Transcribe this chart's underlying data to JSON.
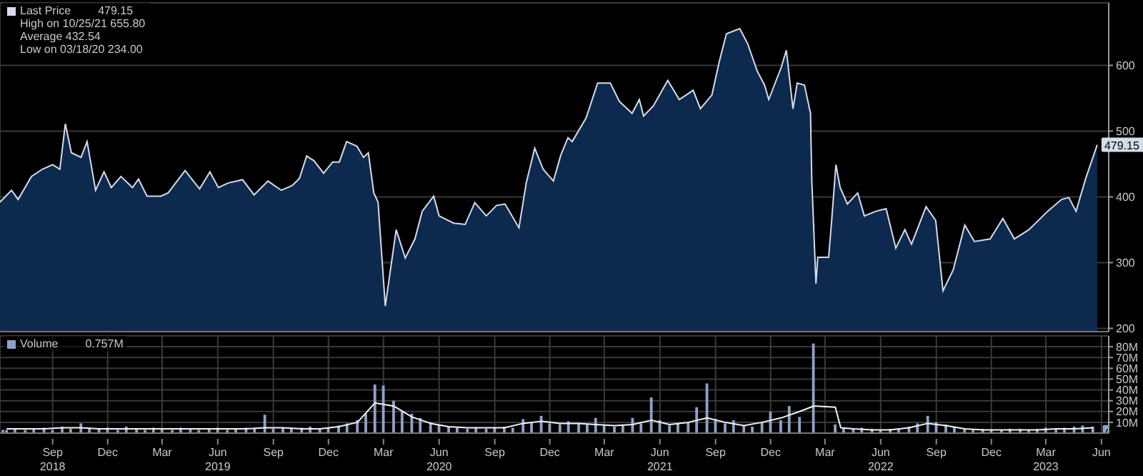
{
  "chart_data": [
    {
      "type": "area",
      "legend": "top left",
      "grid": true,
      "tick_labels": "y",
      "xlim": [
        "2018-06-20",
        "2023-06-27"
      ],
      "ylim": [
        195,
        695
      ],
      "yticks": [
        200,
        300,
        400,
        500,
        600
      ],
      "xticks": [
        {
          "value": "2018-09-15",
          "label": null
        },
        {
          "value": "2018-12-15",
          "label": null
        },
        {
          "value": "2019-03-15",
          "label": null
        },
        {
          "value": "2019-06-15",
          "label": null
        },
        {
          "value": "2019-09-15",
          "label": null
        },
        {
          "value": "2019-12-15",
          "label": null
        },
        {
          "value": "2020-03-15",
          "label": null
        },
        {
          "value": "2020-06-15",
          "label": null
        },
        {
          "value": "2020-09-15",
          "label": null
        },
        {
          "value": "2020-12-15",
          "label": null
        },
        {
          "value": "2021-03-15",
          "label": null
        },
        {
          "value": "2021-06-15",
          "label": null
        },
        {
          "value": "2021-09-15",
          "label": null
        },
        {
          "value": "2021-12-15",
          "label": null
        },
        {
          "value": "2022-03-15",
          "label": null
        },
        {
          "value": "2022-06-15",
          "label": null
        },
        {
          "value": "2022-09-15",
          "label": null
        },
        {
          "value": "2022-12-15",
          "label": null
        },
        {
          "value": "2023-03-15",
          "label": null
        },
        {
          "value": "2023-06-15",
          "label": null
        }
      ],
      "annotations": [
        "High on 10/25/21 655.80",
        "Average 432.54",
        "Low on 03/18/20 234.00"
      ],
      "series": [
        {
          "name": "Last Price",
          "color": "#d6dcea",
          "x": [
            "2018-06-20",
            "2018-07-09",
            "2018-07-20",
            "2018-08-11",
            "2018-08-29",
            "2018-09-15",
            "2018-09-27",
            "2018-10-06",
            "2018-10-16",
            "2018-11-01",
            "2018-11-11",
            "2018-11-25",
            "2018-12-09",
            "2018-12-21",
            "2019-01-06",
            "2019-01-25",
            "2019-02-04",
            "2019-02-18",
            "2019-03-13",
            "2019-03-25",
            "2019-04-22",
            "2019-05-16",
            "2019-06-02",
            "2019-06-16",
            "2019-07-02",
            "2019-07-26",
            "2019-08-14",
            "2019-09-06",
            "2019-09-28",
            "2019-10-16",
            "2019-10-28",
            "2019-11-09",
            "2019-11-21",
            "2019-12-07",
            "2019-12-22",
            "2020-01-02",
            "2020-01-14",
            "2020-01-31",
            "2020-02-11",
            "2020-02-19",
            "2020-02-28",
            "2020-03-06",
            "2020-03-18",
            "2020-04-05",
            "2020-04-20",
            "2020-05-06",
            "2020-05-18",
            "2020-06-06",
            "2020-06-15",
            "2020-07-09",
            "2020-07-28",
            "2020-08-13",
            "2020-09-01",
            "2020-09-18",
            "2020-10-02",
            "2020-10-25",
            "2020-11-06",
            "2020-11-20",
            "2020-12-04",
            "2020-12-21",
            "2021-01-02",
            "2021-01-14",
            "2021-01-21",
            "2021-02-13",
            "2021-03-04",
            "2021-03-25",
            "2021-04-09",
            "2021-04-30",
            "2021-05-12",
            "2021-05-19",
            "2021-06-04",
            "2021-06-28",
            "2021-07-17",
            "2021-08-09",
            "2021-08-21",
            "2021-09-09",
            "2021-09-21",
            "2021-10-03",
            "2021-10-25",
            "2021-11-07",
            "2021-11-23",
            "2021-12-05",
            "2021-12-12",
            "2022-01-02",
            "2022-01-10",
            "2022-01-21",
            "2022-01-28",
            "2022-02-09",
            "2022-02-19",
            "2022-02-21",
            "2022-02-28",
            "2022-03-03",
            "2022-03-21",
            "2022-03-26",
            "2022-04-02",
            "2022-04-09",
            "2022-04-21",
            "2022-05-08",
            "2022-05-19",
            "2022-06-07",
            "2022-06-24",
            "2022-07-10",
            "2022-07-25",
            "2022-08-05",
            "2022-08-29",
            "2022-09-14",
            "2022-09-26",
            "2022-10-13",
            "2022-11-01",
            "2022-11-17",
            "2022-12-13",
            "2023-01-03",
            "2023-01-22",
            "2023-02-15",
            "2023-03-18",
            "2023-04-10",
            "2023-04-22",
            "2023-05-04",
            "2023-05-20",
            "2023-06-08"
          ],
          "values": [
            392,
            410,
            396,
            431,
            442,
            449,
            442,
            511,
            467,
            460,
            484,
            410,
            438,
            414,
            431,
            414,
            427,
            401,
            401,
            406,
            440,
            412,
            438,
            414,
            421,
            426,
            403,
            424,
            410,
            417,
            428,
            462,
            455,
            436,
            453,
            453,
            484,
            477,
            460,
            467,
            406,
            392,
            234,
            350,
            307,
            336,
            378,
            401,
            371,
            360,
            358,
            391,
            371,
            387,
            389,
            353,
            421,
            474,
            442,
            424,
            463,
            490,
            484,
            520,
            573,
            573,
            545,
            527,
            548,
            523,
            538,
            577,
            548,
            562,
            534,
            555,
            605,
            648,
            655.8,
            633,
            591,
            570,
            548,
            598,
            623,
            534,
            573,
            570,
            527,
            428,
            268,
            308,
            308,
            364,
            449,
            414,
            389,
            406,
            371,
            378,
            382,
            322,
            350,
            328,
            385,
            364,
            257,
            289,
            357,
            332,
            336,
            367,
            336,
            350,
            378,
            396,
            399,
            378,
            428,
            479.15
          ],
          "value_labels": [
            null,
            null,
            null,
            null,
            null,
            null,
            null,
            null,
            null,
            null,
            null,
            null,
            null,
            null,
            null,
            null,
            null,
            null,
            null,
            null,
            null,
            null,
            null,
            null,
            null,
            null,
            null,
            null,
            null,
            null,
            null,
            null,
            null,
            null,
            null,
            null,
            null,
            null,
            null,
            null,
            null,
            null,
            null,
            null,
            null,
            null,
            null,
            null,
            null,
            null,
            null,
            null,
            null,
            null,
            null,
            null,
            null,
            null,
            null,
            null,
            null,
            null,
            null,
            null,
            null,
            null,
            null,
            null,
            null,
            null,
            null,
            null,
            null,
            null,
            null,
            null,
            null,
            null,
            null,
            null,
            null,
            null,
            null,
            null,
            null,
            null,
            null,
            null,
            null,
            null,
            null,
            null,
            null,
            null,
            null,
            null,
            null,
            null,
            null,
            null,
            null,
            null,
            null,
            null,
            null,
            null,
            null,
            null,
            null,
            null,
            null,
            null,
            null,
            null,
            null,
            null,
            null,
            null,
            null,
            "479.15"
          ]
        }
      ]
    },
    {
      "type": "bar",
      "legend": "top left",
      "grid": true,
      "xlim": [
        "2018-06-20",
        "2023-06-27"
      ],
      "ylim": [
        0,
        90
      ],
      "yticks": [
        {
          "value": 10,
          "label": "10M"
        },
        {
          "value": 20,
          "label": "20M"
        },
        {
          "value": 30,
          "label": "30M"
        },
        {
          "value": 40,
          "label": "40M"
        },
        {
          "value": 50,
          "label": "50M"
        },
        {
          "value": 60,
          "label": "60M"
        },
        {
          "value": 70,
          "label": "70M"
        },
        {
          "value": 80,
          "label": "80M"
        }
      ],
      "xticks": [
        {
          "value": "2018-09-15",
          "label": "Sep\n2018"
        },
        {
          "value": "2018-12-15",
          "label": "Dec"
        },
        {
          "value": "2019-03-15",
          "label": "Mar"
        },
        {
          "value": "2019-06-15",
          "label": "Jun\n2019"
        },
        {
          "value": "2019-09-15",
          "label": "Sep"
        },
        {
          "value": "2019-12-15",
          "label": "Dec"
        },
        {
          "value": "2020-03-15",
          "label": "Mar"
        },
        {
          "value": "2020-06-15",
          "label": "Jun\n2020"
        },
        {
          "value": "2020-09-15",
          "label": "Sep"
        },
        {
          "value": "2020-12-15",
          "label": "Dec"
        },
        {
          "value": "2021-03-15",
          "label": "Mar"
        },
        {
          "value": "2021-06-15",
          "label": "Jun\n2021"
        },
        {
          "value": "2021-09-15",
          "label": "Sep"
        },
        {
          "value": "2021-12-15",
          "label": "Dec"
        },
        {
          "value": "2022-03-15",
          "label": "Mar"
        },
        {
          "value": "2022-06-15",
          "label": "Jun\n2022"
        },
        {
          "value": "2022-09-15",
          "label": "Sep"
        },
        {
          "value": "2022-12-15",
          "label": "Dec"
        },
        {
          "value": "2023-03-15",
          "label": "Mar\n2023"
        },
        {
          "value": "2023-06-15",
          "label": "Jun"
        }
      ],
      "series": [
        {
          "name": "Volume",
          "color": "#8fa3c8",
          "x": [
            "2018-06-25",
            "2018-07-01",
            "2018-07-15",
            "2018-08-01",
            "2018-08-15",
            "2018-09-01",
            "2018-09-15",
            "2018-10-01",
            "2018-10-15",
            "2018-11-01",
            "2018-11-15",
            "2018-12-01",
            "2018-12-15",
            "2019-01-01",
            "2019-01-15",
            "2019-02-01",
            "2019-02-15",
            "2019-03-01",
            "2019-03-15",
            "2019-04-01",
            "2019-04-15",
            "2019-05-01",
            "2019-05-15",
            "2019-06-01",
            "2019-06-15",
            "2019-07-01",
            "2019-07-15",
            "2019-08-01",
            "2019-08-15",
            "2019-09-01",
            "2019-09-15",
            "2019-10-01",
            "2019-10-15",
            "2019-11-01",
            "2019-11-15",
            "2019-12-01",
            "2019-12-15",
            "2020-01-01",
            "2020-01-15",
            "2020-02-01",
            "2020-02-15",
            "2020-03-01",
            "2020-03-15",
            "2020-04-01",
            "2020-04-15",
            "2020-05-01",
            "2020-05-15",
            "2020-06-01",
            "2020-06-15",
            "2020-07-01",
            "2020-07-15",
            "2020-08-01",
            "2020-08-15",
            "2020-09-01",
            "2020-09-15",
            "2020-10-01",
            "2020-10-15",
            "2020-11-01",
            "2020-11-15",
            "2020-12-01",
            "2020-12-15",
            "2021-01-01",
            "2021-01-15",
            "2021-02-01",
            "2021-02-15",
            "2021-03-01",
            "2021-03-15",
            "2021-04-01",
            "2021-04-15",
            "2021-05-01",
            "2021-05-15",
            "2021-06-01",
            "2021-06-15",
            "2021-07-01",
            "2021-07-15",
            "2021-08-01",
            "2021-08-15",
            "2021-09-01",
            "2021-09-15",
            "2021-10-01",
            "2021-10-15",
            "2021-11-01",
            "2021-11-15",
            "2021-12-01",
            "2021-12-15",
            "2022-01-01",
            "2022-01-15",
            "2022-02-01",
            "2022-02-24",
            "2022-03-01",
            "2022-03-15",
            "2022-04-01",
            "2022-04-15",
            "2022-05-01",
            "2022-05-15",
            "2022-06-01",
            "2022-06-15",
            "2022-07-01",
            "2022-07-15",
            "2022-08-01",
            "2022-08-15",
            "2022-09-01",
            "2022-09-15",
            "2022-10-01",
            "2022-10-15",
            "2022-11-01",
            "2022-11-15",
            "2022-12-01",
            "2022-12-15",
            "2023-01-01",
            "2023-01-15",
            "2023-02-01",
            "2023-02-15",
            "2023-03-01",
            "2023-03-15",
            "2023-04-01",
            "2023-04-15",
            "2023-05-01",
            "2023-05-15",
            "2023-06-01",
            "2023-06-08"
          ],
          "values": [
            3,
            3,
            4,
            3,
            4,
            5,
            3,
            6,
            4,
            9,
            5,
            4,
            5,
            3,
            6,
            4,
            3,
            5,
            4,
            3,
            5,
            4,
            3,
            4,
            5,
            3,
            4,
            5,
            4,
            17,
            4,
            5,
            4,
            5,
            6,
            4,
            5,
            7,
            9,
            12,
            18,
            45,
            44,
            30,
            20,
            18,
            14,
            10,
            8,
            6,
            5,
            4,
            5,
            4,
            5,
            6,
            5,
            13,
            10,
            16,
            9,
            8,
            11,
            9,
            8,
            14,
            7,
            6,
            8,
            14,
            9,
            33,
            12,
            7,
            9,
            10,
            24,
            46,
            13,
            9,
            12,
            7,
            6,
            10,
            20,
            12,
            25,
            15,
            83,
            null,
            null,
            8,
            5,
            4,
            5,
            4,
            3,
            4,
            4,
            6,
            9,
            16,
            10,
            8,
            6,
            4,
            3,
            4,
            3,
            3,
            4,
            4,
            3,
            4,
            5,
            4,
            5,
            6,
            7,
            6,
            0.757
          ],
          "value_labels": [
            null,
            null,
            null,
            null,
            null,
            null,
            null,
            null,
            null,
            null,
            null,
            null,
            null,
            null,
            null,
            null,
            null,
            null,
            null,
            null,
            null,
            null,
            null,
            null,
            null,
            null,
            null,
            null,
            null,
            null,
            null,
            null,
            null,
            null,
            null,
            null,
            null,
            null,
            null,
            null,
            null,
            null,
            null,
            null,
            null,
            null,
            null,
            null,
            null,
            null,
            null,
            null,
            null,
            null,
            null,
            null,
            null,
            null,
            null,
            null,
            null,
            null,
            null,
            null,
            null,
            null,
            null,
            null,
            null,
            null,
            null,
            null,
            null,
            null,
            null,
            null,
            null,
            null,
            null,
            null,
            null,
            null,
            null,
            null,
            null,
            null,
            null,
            null,
            null,
            null,
            null,
            null,
            null,
            null,
            null,
            null,
            null,
            null,
            null,
            null,
            null,
            null,
            null,
            null,
            null,
            null,
            null,
            null,
            null,
            null,
            null,
            null,
            null,
            null,
            null,
            null,
            null,
            null,
            null,
            null,
            "0.757M"
          ]
        },
        {
          "type": "line",
          "color": "#f2f2f2",
          "x": [
            "2018-07-01",
            "2018-08-01",
            "2018-09-01",
            "2018-10-01",
            "2018-11-01",
            "2018-12-01",
            "2019-01-01",
            "2019-02-01",
            "2019-03-01",
            "2019-04-01",
            "2019-05-01",
            "2019-06-01",
            "2019-07-01",
            "2019-08-01",
            "2019-09-01",
            "2019-10-01",
            "2019-11-01",
            "2019-12-01",
            "2020-01-01",
            "2020-02-01",
            "2020-03-01",
            "2020-04-01",
            "2020-05-01",
            "2020-06-01",
            "2020-07-01",
            "2020-08-01",
            "2020-09-01",
            "2020-10-01",
            "2020-11-01",
            "2020-12-01",
            "2021-01-01",
            "2021-02-01",
            "2021-03-01",
            "2021-04-01",
            "2021-05-01",
            "2021-06-01",
            "2021-07-01",
            "2021-08-01",
            "2021-09-01",
            "2021-10-01",
            "2021-11-01",
            "2021-12-01",
            "2022-01-01",
            "2022-02-01",
            "2022-02-24",
            "2022-03-01",
            "2022-04-01",
            "2022-04-10",
            "2022-05-01",
            "2022-06-01",
            "2022-07-01",
            "2022-08-01",
            "2022-09-01",
            "2022-10-01",
            "2022-11-01",
            "2022-12-01",
            "2023-01-01",
            "2023-02-01",
            "2023-03-01",
            "2023-04-01",
            "2023-05-01",
            "2023-06-01"
          ],
          "values": [
            4,
            4,
            4,
            5,
            5,
            4,
            4,
            4,
            4,
            4,
            4,
            4,
            4,
            4,
            5,
            5,
            4,
            4,
            6,
            10,
            28,
            25,
            15,
            9,
            6,
            5,
            5,
            5,
            9,
            11,
            9,
            9,
            8,
            7,
            8,
            12,
            8,
            10,
            14,
            10,
            7,
            10,
            14,
            20,
            25,
            25,
            24,
            5,
            4,
            3,
            3,
            5,
            9,
            7,
            4,
            3,
            3,
            3,
            3,
            4,
            4,
            5
          ]
        }
      ]
    }
  ]
}
